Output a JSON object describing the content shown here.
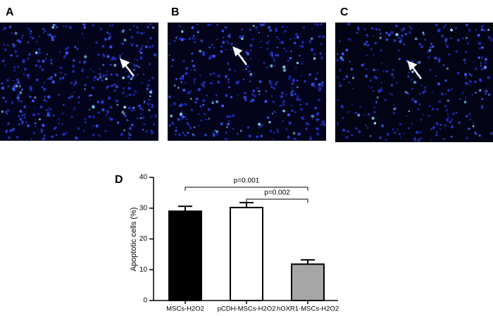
{
  "panel_labels": [
    "A",
    "B",
    "C",
    "D"
  ],
  "chart_data": {
    "type": "bar",
    "categories": [
      "MSCs-H2O2",
      "pCDH-MSCs-H2O2",
      "hOXR1-MSCs-H2O2"
    ],
    "values": [
      29,
      30.2,
      11.8
    ],
    "errors": [
      1.6,
      1.6,
      1.4
    ],
    "colors": [
      "#000000",
      "#ffffff",
      "#a6a6a6"
    ],
    "y_label": "Apoptotic cells (%)",
    "ylim": [
      0,
      40
    ],
    "yticks": [
      0,
      10,
      20,
      30,
      40
    ],
    "annotations": [
      {
        "text": "p=0.001"
      },
      {
        "text": "p=0.002"
      }
    ]
  }
}
